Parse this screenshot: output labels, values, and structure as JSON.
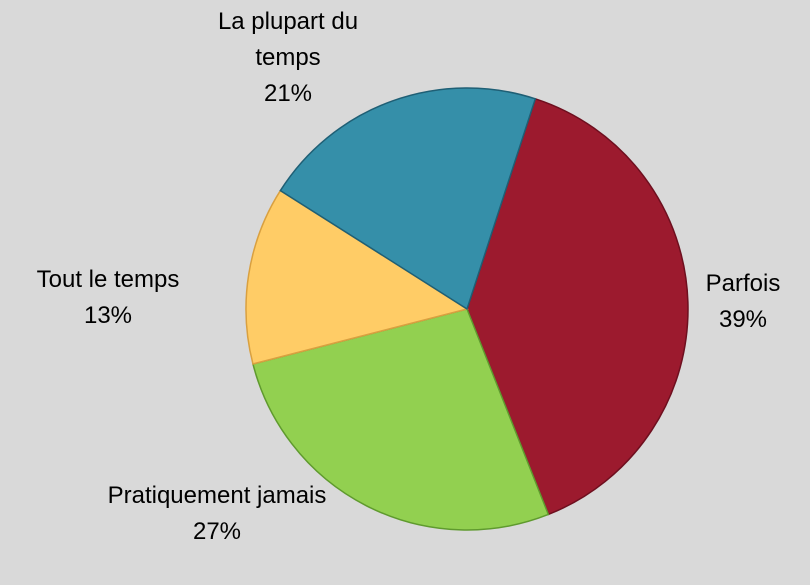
{
  "chart_data": {
    "type": "pie",
    "categories": [
      "Parfois",
      "Pratiquement jamais",
      "Tout le temps",
      "La plupart du temps"
    ],
    "values": [
      39,
      27,
      13,
      21
    ],
    "value_labels": [
      "39%",
      "27%",
      "13%",
      "21%"
    ],
    "colors": [
      "#9c1a2e",
      "#92d050",
      "#ffcc66",
      "#358fa9"
    ]
  }
}
